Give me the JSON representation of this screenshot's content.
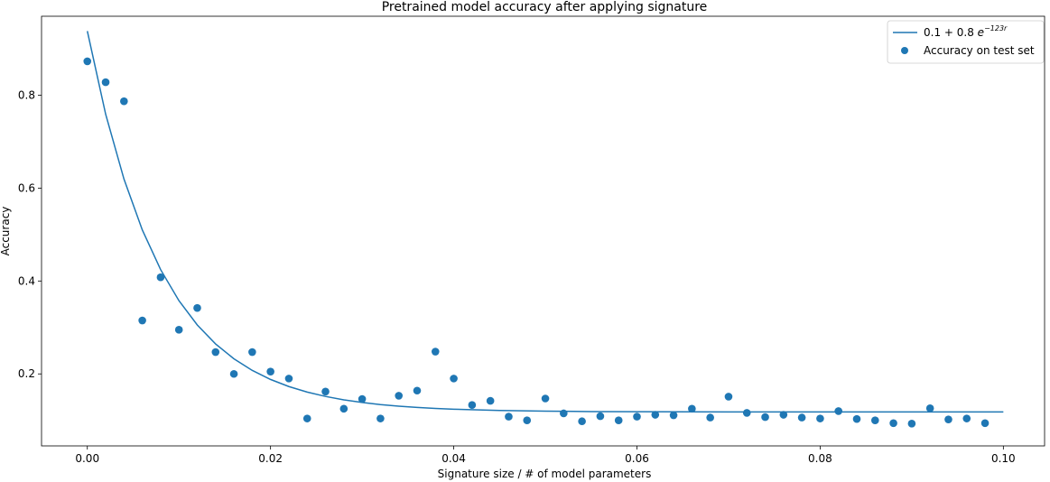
{
  "chart_data": {
    "type": "scatter",
    "title": "Pretrained model accuracy after applying signature",
    "xlabel": "Signature size / # of model parameters",
    "ylabel": "Accuracy",
    "xlim": [
      -0.005,
      0.1045
    ],
    "ylim": [
      0.045,
      0.97
    ],
    "xticks": [
      0.0,
      0.02,
      0.04,
      0.06,
      0.08,
      0.1
    ],
    "xtick_labels": [
      "0.00",
      "0.02",
      "0.04",
      "0.06",
      "0.08",
      "0.10"
    ],
    "yticks": [
      0.2,
      0.4,
      0.6,
      0.8
    ],
    "ytick_labels": [
      "0.2",
      "0.4",
      "0.6",
      "0.8"
    ],
    "grid": false,
    "legend_position": "top-right",
    "color": "#1f77b4",
    "series": [
      {
        "name": "0.1 + 0.8 e^{-123r}",
        "kind": "line",
        "legend_text": {
          "base": "0.1 + 0.8 ",
          "e": "e",
          "exponent": "−123r"
        },
        "function": {
          "a": 0.118,
          "b": 0.82,
          "k": 123
        },
        "x": [
          0.0,
          0.002,
          0.004,
          0.006,
          0.008,
          0.01,
          0.012,
          0.014,
          0.016,
          0.018,
          0.02,
          0.022,
          0.024,
          0.026,
          0.028,
          0.03,
          0.032,
          0.034,
          0.036,
          0.038,
          0.04,
          0.045,
          0.05,
          0.055,
          0.06,
          0.07,
          0.08,
          0.09,
          0.1
        ]
      },
      {
        "name": "Accuracy on test set",
        "kind": "scatter",
        "points": [
          [
            0.0,
            0.873
          ],
          [
            0.002,
            0.828
          ],
          [
            0.004,
            0.787
          ],
          [
            0.006,
            0.315
          ],
          [
            0.008,
            0.408
          ],
          [
            0.01,
            0.295
          ],
          [
            0.012,
            0.342
          ],
          [
            0.014,
            0.247
          ],
          [
            0.016,
            0.2
          ],
          [
            0.018,
            0.247
          ],
          [
            0.02,
            0.205
          ],
          [
            0.022,
            0.19
          ],
          [
            0.024,
            0.104
          ],
          [
            0.026,
            0.162
          ],
          [
            0.028,
            0.125
          ],
          [
            0.03,
            0.146
          ],
          [
            0.032,
            0.104
          ],
          [
            0.034,
            0.153
          ],
          [
            0.036,
            0.164
          ],
          [
            0.038,
            0.248
          ],
          [
            0.04,
            0.19
          ],
          [
            0.042,
            0.133
          ],
          [
            0.044,
            0.142
          ],
          [
            0.046,
            0.108
          ],
          [
            0.048,
            0.1
          ],
          [
            0.05,
            0.147
          ],
          [
            0.052,
            0.115
          ],
          [
            0.054,
            0.098
          ],
          [
            0.056,
            0.109
          ],
          [
            0.058,
            0.1
          ],
          [
            0.06,
            0.108
          ],
          [
            0.062,
            0.112
          ],
          [
            0.064,
            0.111
          ],
          [
            0.066,
            0.125
          ],
          [
            0.068,
            0.106
          ],
          [
            0.07,
            0.151
          ],
          [
            0.072,
            0.116
          ],
          [
            0.074,
            0.107
          ],
          [
            0.076,
            0.112
          ],
          [
            0.078,
            0.106
          ],
          [
            0.08,
            0.104
          ],
          [
            0.082,
            0.12
          ],
          [
            0.084,
            0.103
          ],
          [
            0.086,
            0.1
          ],
          [
            0.088,
            0.094
          ],
          [
            0.09,
            0.093
          ],
          [
            0.092,
            0.126
          ],
          [
            0.094,
            0.102
          ],
          [
            0.096,
            0.104
          ],
          [
            0.098,
            0.094
          ]
        ]
      }
    ]
  }
}
